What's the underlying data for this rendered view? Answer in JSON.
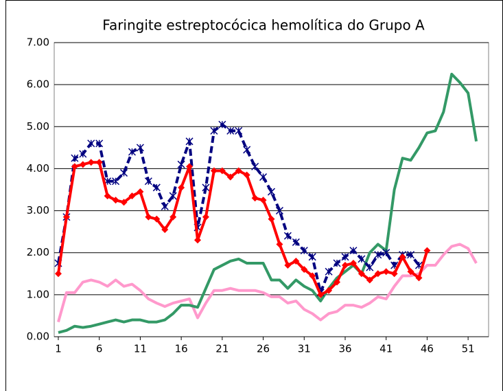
{
  "chart_data": {
    "type": "line",
    "title": "Faringite estreptocócica hemolítica do Grupo A",
    "x": [
      1,
      2,
      3,
      4,
      5,
      6,
      7,
      8,
      9,
      10,
      11,
      12,
      13,
      14,
      15,
      16,
      17,
      18,
      19,
      20,
      21,
      22,
      23,
      24,
      25,
      26,
      27,
      28,
      29,
      30,
      31,
      32,
      33,
      34,
      35,
      36,
      37,
      38,
      39,
      40,
      41,
      42,
      43,
      44,
      45,
      46,
      47,
      48,
      49,
      50,
      51,
      52
    ],
    "xlim": [
      0.5,
      53.5
    ],
    "xticks": [
      1,
      6,
      11,
      16,
      21,
      26,
      31,
      36,
      41,
      46,
      51
    ],
    "ylim": [
      0,
      7
    ],
    "yticks": [
      {
        "value": 0,
        "label": "0.00"
      },
      {
        "value": 1,
        "label": "1.00"
      },
      {
        "value": 2,
        "label": "2.00"
      },
      {
        "value": 3,
        "label": "3.00"
      },
      {
        "value": 4,
        "label": "4.00"
      },
      {
        "value": 5,
        "label": "5.00"
      },
      {
        "value": 6,
        "label": "6.00"
      },
      {
        "value": 7,
        "label": "7.00"
      }
    ],
    "grid": true,
    "series": [
      {
        "color": "#ff99cc",
        "values": [
          0.35,
          1.05,
          1.05,
          1.3,
          1.35,
          1.3,
          1.2,
          1.35,
          1.2,
          1.25,
          1.1,
          0.9,
          0.8,
          0.72,
          0.8,
          0.85,
          0.9,
          0.45,
          0.8,
          1.1,
          1.1,
          1.15,
          1.1,
          1.1,
          1.1,
          1.05,
          0.95,
          0.95,
          0.8,
          0.85,
          0.65,
          0.55,
          0.4,
          0.55,
          0.6,
          0.75,
          0.75,
          0.7,
          0.8,
          0.95,
          0.9,
          1.2,
          1.45,
          1.45,
          1.5,
          1.7,
          1.7,
          1.95,
          2.15,
          2.2,
          2.1,
          1.75
        ]
      },
      {
        "color": "#339966",
        "values": [
          0.1,
          0.15,
          0.25,
          0.22,
          0.25,
          0.3,
          0.35,
          0.4,
          0.35,
          0.4,
          0.4,
          0.35,
          0.35,
          0.4,
          0.55,
          0.75,
          0.75,
          0.7,
          1.15,
          1.6,
          1.7,
          1.8,
          1.85,
          1.75,
          1.75,
          1.75,
          1.35,
          1.35,
          1.15,
          1.35,
          1.2,
          1.1,
          0.85,
          1.15,
          1.4,
          1.55,
          1.7,
          1.5,
          2.0,
          2.2,
          2.05,
          3.5,
          4.25,
          4.2,
          4.5,
          4.85,
          4.9,
          5.35,
          6.25,
          6.05,
          5.8,
          4.65
        ]
      },
      {
        "color": "#000080",
        "dashed": true,
        "marker": "asterisk",
        "values": [
          1.75,
          2.85,
          4.25,
          4.35,
          4.6,
          4.6,
          3.7,
          3.7,
          3.9,
          4.4,
          4.5,
          3.7,
          3.55,
          3.1,
          3.35,
          4.1,
          4.65,
          2.6,
          3.55,
          4.9,
          5.05,
          4.9,
          4.9,
          4.45,
          4.05,
          3.8,
          3.45,
          3.0,
          2.4,
          2.25,
          2.05,
          1.9,
          1.05,
          1.55,
          1.75,
          1.9,
          2.05,
          1.85,
          1.65,
          1.95,
          2.0,
          1.7,
          1.95,
          1.95,
          1.7,
          null,
          null,
          null,
          null,
          null,
          null,
          null
        ]
      },
      {
        "color": "#ff0000",
        "marker": "diamond",
        "values": [
          1.5,
          2.85,
          4.05,
          4.1,
          4.15,
          4.15,
          3.35,
          3.25,
          3.2,
          3.35,
          3.45,
          2.85,
          2.8,
          2.55,
          2.85,
          3.55,
          4.05,
          2.3,
          2.85,
          3.95,
          3.95,
          3.8,
          3.95,
          3.85,
          3.3,
          3.25,
          2.8,
          2.2,
          1.7,
          1.8,
          1.6,
          1.45,
          1.0,
          1.1,
          1.3,
          1.7,
          1.75,
          1.5,
          1.35,
          1.5,
          1.55,
          1.5,
          1.9,
          1.55,
          1.4,
          2.05,
          null,
          null,
          null,
          null,
          null,
          null
        ]
      }
    ]
  }
}
